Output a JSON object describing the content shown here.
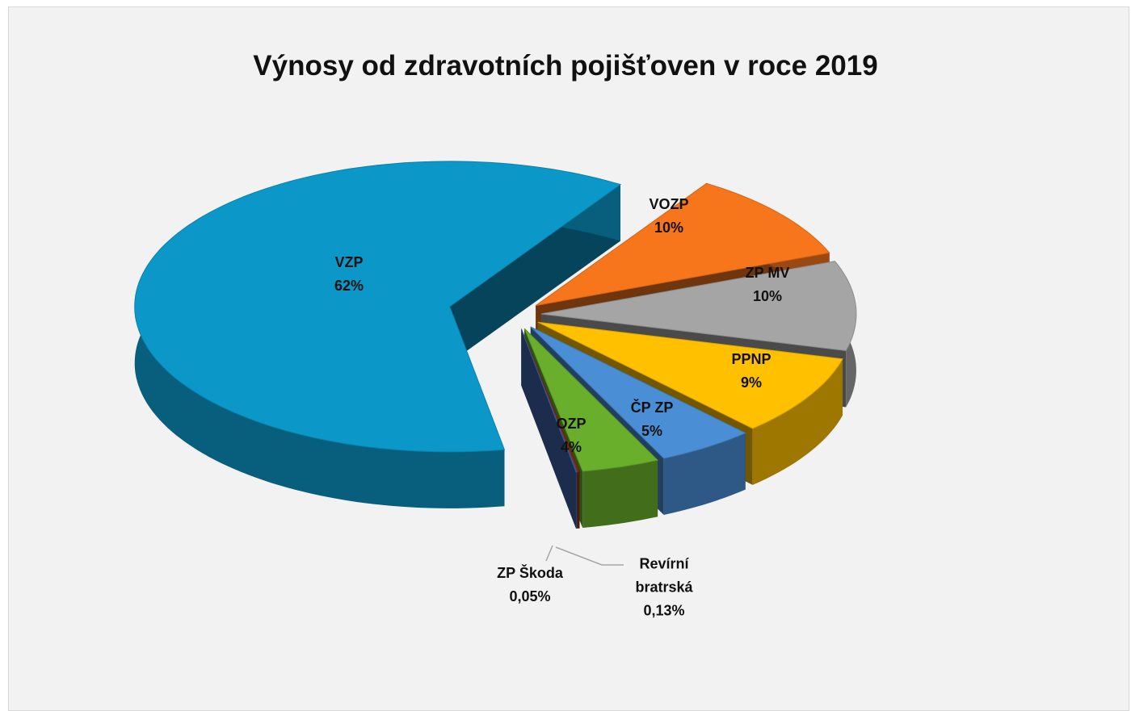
{
  "chart_data": {
    "type": "pie",
    "title": "Výnosy od zdravotních pojišťoven v roce 2019",
    "categories": [
      "VZP",
      "VOZP",
      "ZP MV",
      "PPNP",
      "ČP ZP",
      "OZP",
      "Revírní bratrská",
      "ZP Škoda"
    ],
    "values": [
      62,
      10,
      10,
      9,
      5,
      4,
      0.13,
      0.05
    ],
    "value_labels": [
      "62%",
      "10%",
      "10%",
      "9%",
      "5%",
      "4%",
      "0,13%",
      "0,05%"
    ],
    "colors": [
      "#0b98c9",
      "#f7761b",
      "#a5a5a5",
      "#ffc000",
      "#4a8ed6",
      "#6aaf2c",
      "#7a2a0c",
      "#3f62a8"
    ]
  }
}
